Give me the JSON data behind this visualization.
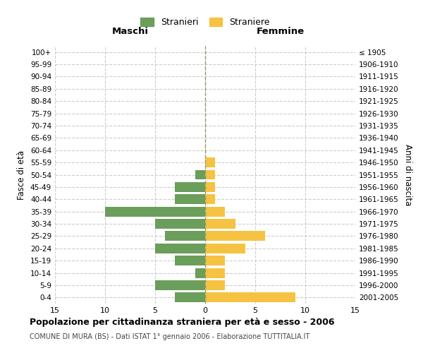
{
  "age_groups": [
    "0-4",
    "5-9",
    "10-14",
    "15-19",
    "20-24",
    "25-29",
    "30-34",
    "35-39",
    "40-44",
    "45-49",
    "50-54",
    "55-59",
    "60-64",
    "65-69",
    "70-74",
    "75-79",
    "80-84",
    "85-89",
    "90-94",
    "95-99",
    "100+"
  ],
  "birth_years": [
    "2001-2005",
    "1996-2000",
    "1991-1995",
    "1986-1990",
    "1981-1985",
    "1976-1980",
    "1971-1975",
    "1966-1970",
    "1961-1965",
    "1956-1960",
    "1951-1955",
    "1946-1950",
    "1941-1945",
    "1936-1940",
    "1931-1935",
    "1926-1930",
    "1921-1925",
    "1916-1920",
    "1911-1915",
    "1906-1910",
    "≤ 1905"
  ],
  "males": [
    3,
    5,
    1,
    3,
    5,
    4,
    5,
    10,
    3,
    3,
    1,
    0,
    0,
    0,
    0,
    0,
    0,
    0,
    0,
    0,
    0
  ],
  "females": [
    9,
    2,
    2,
    2,
    4,
    6,
    3,
    2,
    1,
    1,
    1,
    1,
    0,
    0,
    0,
    0,
    0,
    0,
    0,
    0,
    0
  ],
  "male_color": "#6a9e5a",
  "female_color": "#f5c242",
  "title": "Popolazione per cittadinanza straniera per età e sesso - 2006",
  "subtitle": "COMUNE DI MURA (BS) - Dati ISTAT 1° gennaio 2006 - Elaborazione TUTTITALIA.IT",
  "xlabel_left": "Maschi",
  "xlabel_right": "Femmine",
  "ylabel_left": "Fasce di età",
  "ylabel_right": "Anni di nascita",
  "legend_male": "Stranieri",
  "legend_female": "Straniere",
  "xlim": 15,
  "bg_color": "#ffffff",
  "grid_color": "#cccccc",
  "bar_height": 0.8
}
